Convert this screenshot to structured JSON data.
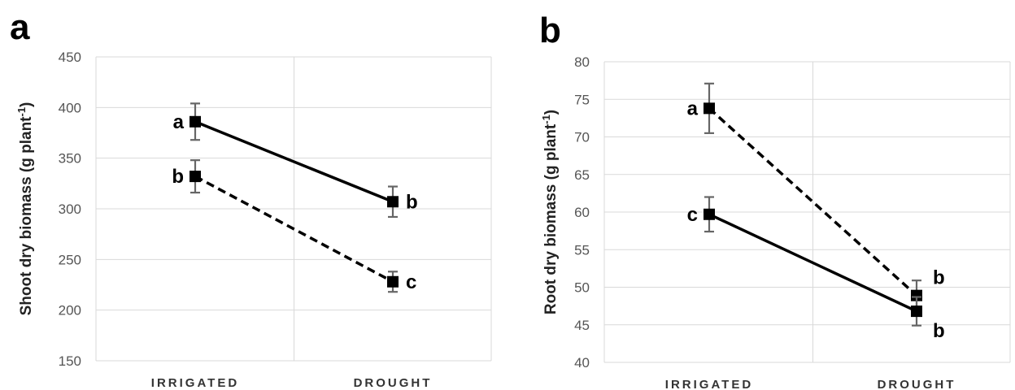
{
  "chart_data": [
    {
      "panel": "a",
      "type": "line",
      "ylabel": "Shoot dry biomass (g plant",
      "ylabel_sup": "-1",
      "ylabel_end": ")",
      "categories": [
        "IRRIGATED",
        "DROUGHT"
      ],
      "ylim": [
        150,
        450
      ],
      "yticks": [
        150,
        200,
        250,
        300,
        350,
        400,
        450
      ],
      "grid": true,
      "series": [
        {
          "style": "solid",
          "values": [
            386,
            307
          ],
          "errors": [
            18,
            15
          ],
          "letters": [
            "a",
            "b"
          ]
        },
        {
          "style": "dashed",
          "values": [
            332,
            228
          ],
          "errors": [
            16,
            10
          ],
          "letters": [
            "b",
            "c"
          ]
        }
      ]
    },
    {
      "panel": "b",
      "type": "line",
      "ylabel": "Root dry biomass (g plant",
      "ylabel_sup": "-1",
      "ylabel_end": ")",
      "categories": [
        "IRRIGATED",
        "DROUGHT"
      ],
      "ylim": [
        40,
        80
      ],
      "yticks": [
        40,
        45,
        50,
        55,
        60,
        65,
        70,
        75,
        80
      ],
      "grid": true,
      "series": [
        {
          "style": "dashed",
          "values": [
            73.8,
            48.9
          ],
          "errors": [
            3.3,
            2.0
          ],
          "letters": [
            "a",
            "b"
          ]
        },
        {
          "style": "solid",
          "values": [
            59.7,
            46.8
          ],
          "errors": [
            2.3,
            1.9
          ],
          "letters": [
            "c",
            "b"
          ]
        }
      ]
    }
  ]
}
